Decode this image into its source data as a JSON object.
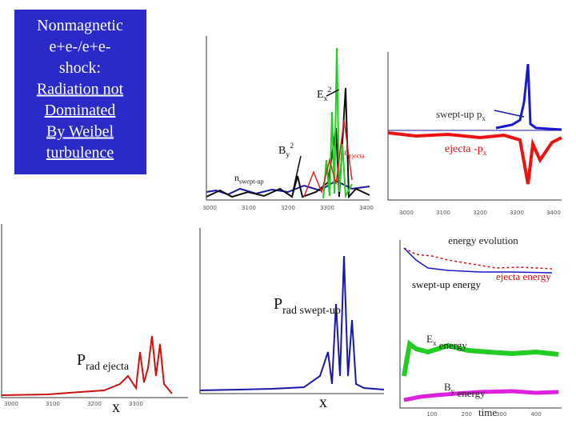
{
  "title_box": {
    "lines": [
      "Nonmagnetic",
      "e+e-/e+e-",
      "shock:",
      "Radiation not",
      "Dominated",
      "By Weibel",
      "turbulence"
    ]
  },
  "fields_panel": {
    "ex2": {
      "base": "E",
      "sub": "x",
      "sup": "2"
    },
    "by2": {
      "base": "B",
      "sub": "y",
      "sup": "2"
    },
    "n_ejecta": {
      "base": "n",
      "sub": "ejecta"
    },
    "n_swept": {
      "base": "n",
      "sub": "swept-up"
    },
    "x_ticks": [
      "3000",
      "3100",
      "3200",
      "3300",
      "3400"
    ]
  },
  "momentum_panel": {
    "swept": {
      "base": "swept-up p",
      "sub": "x"
    },
    "ejecta": {
      "base": "ejecta -p",
      "sub": "x"
    },
    "x_ticks": [
      "3000",
      "3100",
      "3200",
      "3300",
      "3400"
    ]
  },
  "prad_ejecta_panel": {
    "label": {
      "base": "P",
      "sub": "rad ejecta"
    },
    "axis": "x",
    "x_ticks": [
      "3000",
      "3100",
      "3200",
      "3300"
    ]
  },
  "prad_swept_panel": {
    "label": {
      "base": "P",
      "sub": "rad swept-up"
    },
    "axis": "x"
  },
  "energy_panel": {
    "title": "energy evolution",
    "ejecta": "ejecta energy",
    "swept": "swept-up energy",
    "ex": {
      "base": "E",
      "sub": "x",
      "rest": " energy"
    },
    "by": {
      "base": "B",
      "sub": "y",
      "rest": " energy"
    },
    "axis": "time",
    "x_ticks": [
      "100",
      "200",
      "300",
      "400"
    ]
  }
}
